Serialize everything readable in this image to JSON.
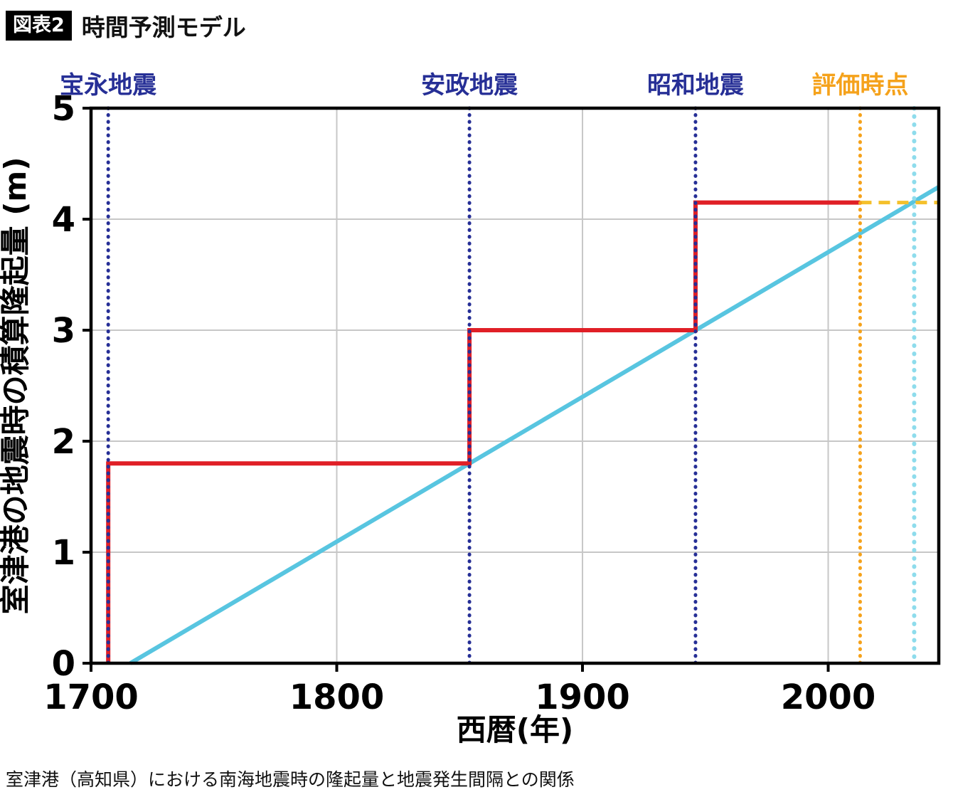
{
  "header": {
    "badge": "図表2",
    "title": "時間予測モデル"
  },
  "caption": "室津港（高知県）における南海地震時の隆起量と地震発生間隔との関係",
  "colors": {
    "grid": "#c7c7c7",
    "frame": "#000000",
    "navy": "#262f96",
    "red": "#e01f26",
    "cyan": "#58c5e0",
    "cyan_light": "#8edcec",
    "orange": "#f5a21b",
    "yellow": "#f4c02b"
  },
  "chart_data": {
    "type": "line",
    "title": "時間予測モデル",
    "xlabel": "西暦(年)",
    "ylabel": "室津港の地震時の積算隆起量 (m)",
    "xlim": [
      1700,
      2045
    ],
    "ylim": [
      0,
      5
    ],
    "xticks": [
      1700,
      1800,
      1900,
      2000
    ],
    "yticks": [
      0,
      1,
      2,
      3,
      4,
      5
    ],
    "grid": true,
    "legend": "none",
    "events": [
      {
        "label": "宝永地震",
        "year": 1707,
        "color": "#262f96"
      },
      {
        "label": "安政地震",
        "year": 1854,
        "color": "#262f96"
      },
      {
        "label": "昭和地震",
        "year": 1946,
        "color": "#262f96"
      },
      {
        "label": "評価時点",
        "year": 2013,
        "color": "#f5a21b"
      }
    ],
    "next_event_marker": {
      "year": 2035,
      "color": "#8edcec"
    },
    "series": [
      {
        "name": "cumulative-uplift-steps",
        "color": "#e01f26",
        "style": "solid",
        "width": 6,
        "points": [
          [
            1707,
            0
          ],
          [
            1707,
            1.8
          ],
          [
            1854,
            1.8
          ],
          [
            1854,
            3.0
          ],
          [
            1946,
            3.0
          ],
          [
            1946,
            4.15
          ],
          [
            2013,
            4.15
          ]
        ]
      },
      {
        "name": "projected-uplift-level",
        "color": "#f4c02b",
        "style": "dashed",
        "width": 5,
        "points": [
          [
            2013,
            4.15
          ],
          [
            2045,
            4.15
          ]
        ]
      },
      {
        "name": "uplift-accumulation-trend",
        "color": "#58c5e0",
        "style": "solid",
        "width": 6,
        "points": [
          [
            1716,
            0
          ],
          [
            2045,
            4.29
          ]
        ]
      }
    ]
  }
}
